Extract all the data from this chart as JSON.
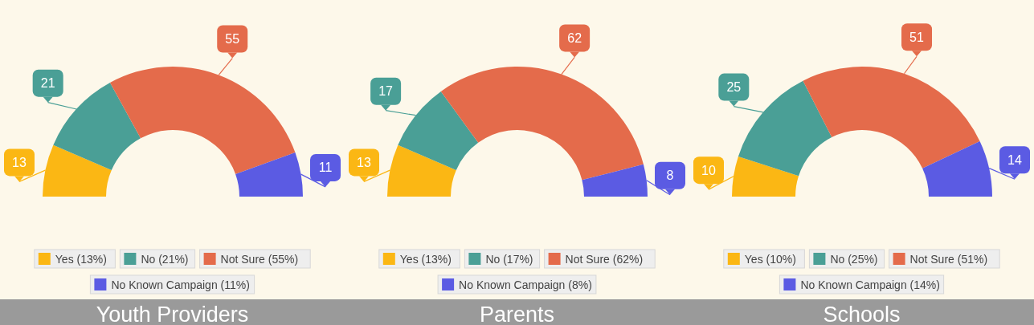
{
  "chart_data": [
    {
      "type": "donut",
      "title": "Youth Providers",
      "categories": [
        "Yes (13%)",
        "No (21%)",
        "Not Sure (55%)",
        "No Known Campaign (11%)"
      ],
      "values": [
        13,
        21,
        55,
        11
      ],
      "colors": [
        "#fbb714",
        "#4a9f96",
        "#e46b4b",
        "#5b5be3"
      ],
      "data_labels": true,
      "legend": "bottom"
    },
    {
      "type": "donut",
      "title": "Parents",
      "categories": [
        "Yes (13%)",
        "No (17%)",
        "Not Sure (62%)",
        "No Known Campaign (8%)"
      ],
      "values": [
        13,
        17,
        62,
        8
      ],
      "colors": [
        "#fbb714",
        "#4a9f96",
        "#e46b4b",
        "#5b5be3"
      ],
      "data_labels": true,
      "legend": "bottom"
    },
    {
      "type": "donut",
      "title": "Schools",
      "categories": [
        "Yes (10%)",
        "No (25%)",
        "Not Sure (51%)",
        "No Known Campaign (14%)"
      ],
      "values": [
        10,
        25,
        51,
        14
      ],
      "colors": [
        "#fbb714",
        "#4a9f96",
        "#e46b4b",
        "#5b5be3"
      ],
      "data_labels": true,
      "legend": "bottom"
    }
  ]
}
